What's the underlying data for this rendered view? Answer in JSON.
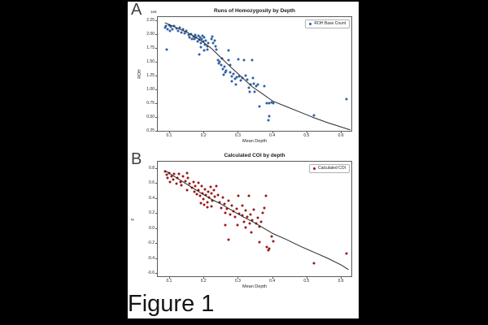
{
  "page": {
    "panel_a_letter": "A",
    "panel_b_letter": "B",
    "caption": "Figure 1",
    "background_color": "#000000",
    "paper_color": "#ffffff"
  },
  "chart_data": [
    {
      "type": "scatter",
      "panel": "A",
      "title": "Runs of Homozygosity by Depth",
      "xlabel": "Mean Depth",
      "ylabel": "ROH",
      "y_offset_label": "1e6",
      "legend": {
        "label": "ROH Base Count",
        "position": "upper-right"
      },
      "marker_color": "#2d5fa4",
      "line_color": "#2b2b2b",
      "grid": false,
      "xlim": [
        0.0645,
        0.633
      ],
      "ylim": [
        0.235,
        2.3235
      ],
      "xticks": [
        0.1,
        0.2,
        0.3,
        0.4,
        0.5,
        0.6
      ],
      "xtick_labels": [
        "0.1",
        "0.2",
        "0.3",
        "0.4",
        "0.5",
        "0.6"
      ],
      "yticks": [
        2.25,
        2.0,
        1.75,
        1.5,
        1.25,
        1.0,
        0.75,
        0.5,
        0.25
      ],
      "ytick_labels": [
        "2.25",
        "2.00",
        "1.75",
        "1.50",
        "1.25",
        "1.00",
        "0.75",
        "0.50",
        "0.25"
      ],
      "points": [
        [
          0.085,
          2.13
        ],
        [
          0.088,
          2.16
        ],
        [
          0.093,
          2.11
        ],
        [
          0.097,
          2.17
        ],
        [
          0.1,
          2.08
        ],
        [
          0.103,
          2.14
        ],
        [
          0.108,
          2.1
        ],
        [
          0.112,
          2.16
        ],
        [
          0.118,
          2.12
        ],
        [
          0.123,
          2.07
        ],
        [
          0.128,
          2.13
        ],
        [
          0.133,
          2.05
        ],
        [
          0.138,
          2.1
        ],
        [
          0.143,
          2.03
        ],
        [
          0.148,
          2.07
        ],
        [
          0.09,
          1.74
        ],
        [
          0.155,
          2.0
        ],
        [
          0.158,
          1.96
        ],
        [
          0.162,
          2.01
        ],
        [
          0.165,
          1.92
        ],
        [
          0.168,
          1.97
        ],
        [
          0.172,
          1.93
        ],
        [
          0.174,
          2.0
        ],
        [
          0.177,
          1.95
        ],
        [
          0.18,
          1.88
        ],
        [
          0.182,
          1.98
        ],
        [
          0.185,
          1.91
        ],
        [
          0.188,
          1.95
        ],
        [
          0.19,
          1.85
        ],
        [
          0.192,
          1.92
        ],
        [
          0.194,
          1.99
        ],
        [
          0.197,
          1.88
        ],
        [
          0.199,
          1.96
        ],
        [
          0.202,
          1.83
        ],
        [
          0.205,
          1.9
        ],
        [
          0.208,
          1.79
        ],
        [
          0.212,
          1.86
        ],
        [
          0.19,
          1.78
        ],
        [
          0.2,
          1.72
        ],
        [
          0.185,
          1.64
        ],
        [
          0.21,
          1.73
        ],
        [
          0.22,
          1.93
        ],
        [
          0.224,
          1.97
        ],
        [
          0.226,
          1.86
        ],
        [
          0.23,
          1.9
        ],
        [
          0.232,
          1.8
        ],
        [
          0.236,
          1.73
        ],
        [
          0.24,
          1.55
        ],
        [
          0.241,
          1.48
        ],
        [
          0.245,
          1.52
        ],
        [
          0.249,
          1.45
        ],
        [
          0.251,
          1.57
        ],
        [
          0.255,
          1.38
        ],
        [
          0.259,
          1.42
        ],
        [
          0.261,
          1.32
        ],
        [
          0.264,
          1.35
        ],
        [
          0.256,
          1.28
        ],
        [
          0.27,
          1.72
        ],
        [
          0.271,
          1.55
        ],
        [
          0.275,
          1.45
        ],
        [
          0.276,
          1.33
        ],
        [
          0.28,
          1.25
        ],
        [
          0.281,
          1.16
        ],
        [
          0.285,
          1.29
        ],
        [
          0.289,
          1.2
        ],
        [
          0.291,
          1.1
        ],
        [
          0.295,
          1.24
        ],
        [
          0.3,
          1.56
        ],
        [
          0.301,
          1.25
        ],
        [
          0.305,
          1.17
        ],
        [
          0.31,
          1.22
        ],
        [
          0.315,
          1.55
        ],
        [
          0.32,
          1.26
        ],
        [
          0.325,
          1.19
        ],
        [
          0.33,
          1.05
        ],
        [
          0.331,
          0.97
        ],
        [
          0.335,
          1.1
        ],
        [
          0.34,
          1.55
        ],
        [
          0.341,
          1.22
        ],
        [
          0.345,
          1.12
        ],
        [
          0.35,
          1.07
        ],
        [
          0.355,
          1.1
        ],
        [
          0.36,
          0.7
        ],
        [
          0.375,
          1.08
        ],
        [
          0.381,
          0.77
        ],
        [
          0.39,
          0.76
        ],
        [
          0.396,
          0.78
        ],
        [
          0.402,
          0.77
        ],
        [
          0.39,
          0.53
        ],
        [
          0.386,
          0.45
        ],
        [
          0.346,
          0.97
        ],
        [
          0.52,
          0.55
        ],
        [
          0.615,
          0.84
        ]
      ],
      "trend_line": [
        [
          0.085,
          2.22
        ],
        [
          0.12,
          2.13
        ],
        [
          0.155,
          2.03
        ],
        [
          0.19,
          1.9
        ],
        [
          0.22,
          1.76
        ],
        [
          0.25,
          1.58
        ],
        [
          0.28,
          1.4
        ],
        [
          0.31,
          1.23
        ],
        [
          0.34,
          1.06
        ],
        [
          0.37,
          0.93
        ],
        [
          0.4,
          0.8
        ],
        [
          0.44,
          0.7
        ],
        [
          0.48,
          0.6
        ],
        [
          0.52,
          0.5
        ],
        [
          0.56,
          0.41
        ],
        [
          0.6,
          0.33
        ],
        [
          0.625,
          0.28
        ]
      ]
    },
    {
      "type": "scatter",
      "panel": "B",
      "title": "Calculated COI by depth",
      "xlabel": "Mean Depth",
      "ylabel": "F",
      "y_offset_label": "",
      "legend": {
        "label": "Calculated COI",
        "position": "upper-right"
      },
      "marker_color": "#9a1515",
      "line_color": "#2b2b2b",
      "grid": false,
      "xlim": [
        0.0645,
        0.633
      ],
      "ylim": [
        -0.649,
        0.897
      ],
      "xticks": [
        0.1,
        0.2,
        0.3,
        0.4,
        0.5,
        0.6
      ],
      "xtick_labels": [
        "0.1",
        "0.2",
        "0.3",
        "0.4",
        "0.5",
        "0.6"
      ],
      "yticks": [
        0.8,
        0.6,
        0.4,
        0.2,
        0.0,
        -0.2,
        -0.4,
        -0.6
      ],
      "ytick_labels": [
        "0.8",
        "0.6",
        "0.4",
        "0.2",
        "0.0",
        "-0.2",
        "-0.4",
        "-0.6"
      ],
      "points": [
        [
          0.085,
          0.77
        ],
        [
          0.09,
          0.72
        ],
        [
          0.094,
          0.68
        ],
        [
          0.098,
          0.75
        ],
        [
          0.1,
          0.63
        ],
        [
          0.104,
          0.7
        ],
        [
          0.109,
          0.66
        ],
        [
          0.113,
          0.73
        ],
        [
          0.118,
          0.6
        ],
        [
          0.122,
          0.68
        ],
        [
          0.127,
          0.74
        ],
        [
          0.13,
          0.63
        ],
        [
          0.134,
          0.58
        ],
        [
          0.139,
          0.7
        ],
        [
          0.144,
          0.64
        ],
        [
          0.149,
          0.75
        ],
        [
          0.153,
          0.68
        ],
        [
          0.158,
          0.6
        ],
        [
          0.163,
          0.55
        ],
        [
          0.15,
          0.52
        ],
        [
          0.168,
          0.63
        ],
        [
          0.17,
          0.5
        ],
        [
          0.174,
          0.57
        ],
        [
          0.178,
          0.46
        ],
        [
          0.182,
          0.62
        ],
        [
          0.184,
          0.52
        ],
        [
          0.188,
          0.44
        ],
        [
          0.192,
          0.57
        ],
        [
          0.194,
          0.48
        ],
        [
          0.198,
          0.4
        ],
        [
          0.202,
          0.53
        ],
        [
          0.204,
          0.45
        ],
        [
          0.208,
          0.36
        ],
        [
          0.212,
          0.5
        ],
        [
          0.214,
          0.42
        ],
        [
          0.218,
          0.56
        ],
        [
          0.222,
          0.47
        ],
        [
          0.224,
          0.38
        ],
        [
          0.228,
          0.52
        ],
        [
          0.23,
          0.43
        ],
        [
          0.19,
          0.35
        ],
        [
          0.2,
          0.32
        ],
        [
          0.21,
          0.29
        ],
        [
          0.22,
          0.3
        ],
        [
          0.235,
          0.57
        ],
        [
          0.24,
          0.45
        ],
        [
          0.245,
          0.36
        ],
        [
          0.25,
          0.28
        ],
        [
          0.255,
          0.42
        ],
        [
          0.258,
          0.33
        ],
        [
          0.26,
          0.22
        ],
        [
          0.265,
          0.27
        ],
        [
          0.27,
          0.38
        ],
        [
          0.275,
          0.19
        ],
        [
          0.28,
          0.31
        ],
        [
          0.285,
          0.24
        ],
        [
          0.29,
          0.16
        ],
        [
          0.295,
          0.27
        ],
        [
          0.3,
          0.44
        ],
        [
          0.301,
          0.21
        ],
        [
          0.26,
          0.05
        ],
        [
          0.27,
          -0.14
        ],
        [
          0.296,
          0.05
        ],
        [
          0.31,
          0.31
        ],
        [
          0.311,
          0.18
        ],
        [
          0.315,
          0.1
        ],
        [
          0.32,
          0.25
        ],
        [
          0.321,
          0.02
        ],
        [
          0.325,
          0.16
        ],
        [
          0.33,
          0.44
        ],
        [
          0.331,
          0.08
        ],
        [
          0.335,
          0.19
        ],
        [
          0.336,
          -0.04
        ],
        [
          0.34,
          0.12
        ],
        [
          0.345,
          0.26
        ],
        [
          0.35,
          0.07
        ],
        [
          0.355,
          0.15
        ],
        [
          0.36,
          -0.17
        ],
        [
          0.365,
          0.1
        ],
        [
          0.37,
          0.22
        ],
        [
          0.375,
          0.28
        ],
        [
          0.38,
          0.44
        ],
        [
          0.361,
          0.03
        ],
        [
          0.383,
          -0.24
        ],
        [
          0.386,
          -0.28
        ],
        [
          0.39,
          -0.26
        ],
        [
          0.395,
          -0.1
        ],
        [
          0.401,
          -0.16
        ],
        [
          0.52,
          -0.45
        ],
        [
          0.615,
          -0.32
        ]
      ],
      "trend_line": [
        [
          0.085,
          0.78
        ],
        [
          0.12,
          0.68
        ],
        [
          0.155,
          0.58
        ],
        [
          0.19,
          0.48
        ],
        [
          0.22,
          0.4
        ],
        [
          0.25,
          0.33
        ],
        [
          0.28,
          0.25
        ],
        [
          0.31,
          0.17
        ],
        [
          0.34,
          0.1
        ],
        [
          0.37,
          0.02
        ],
        [
          0.4,
          -0.06
        ],
        [
          0.44,
          -0.14
        ],
        [
          0.48,
          -0.23
        ],
        [
          0.52,
          -0.31
        ],
        [
          0.56,
          -0.39
        ],
        [
          0.6,
          -0.48
        ],
        [
          0.62,
          -0.54
        ]
      ]
    }
  ]
}
